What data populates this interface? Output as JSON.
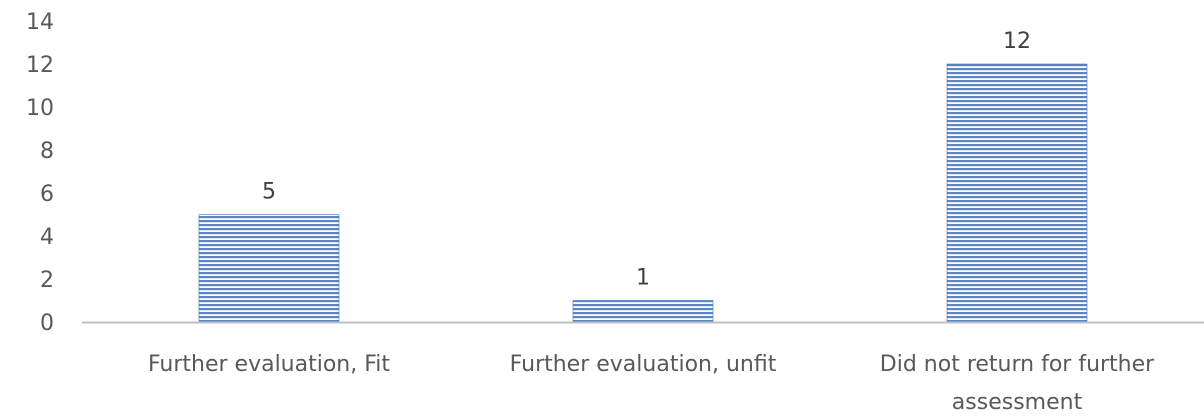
{
  "chart_data": {
    "type": "bar",
    "categories": [
      [
        "Further evaluation, Fit"
      ],
      [
        "Further evaluation, unfit"
      ],
      [
        "Did not return for further",
        "assessment"
      ]
    ],
    "values": [
      5,
      1,
      12
    ],
    "ylim": [
      0,
      14
    ],
    "yticks": [
      0,
      2,
      4,
      6,
      8,
      10,
      12,
      14
    ],
    "grid": false,
    "legend": "none",
    "data_labels": true,
    "colors": {
      "bar_fill": "#5b87c7",
      "bar_stripe": "#ffffff",
      "bar_edge": "#3f6fb5",
      "axis": "#bfbfbf",
      "text": "#595959"
    }
  }
}
